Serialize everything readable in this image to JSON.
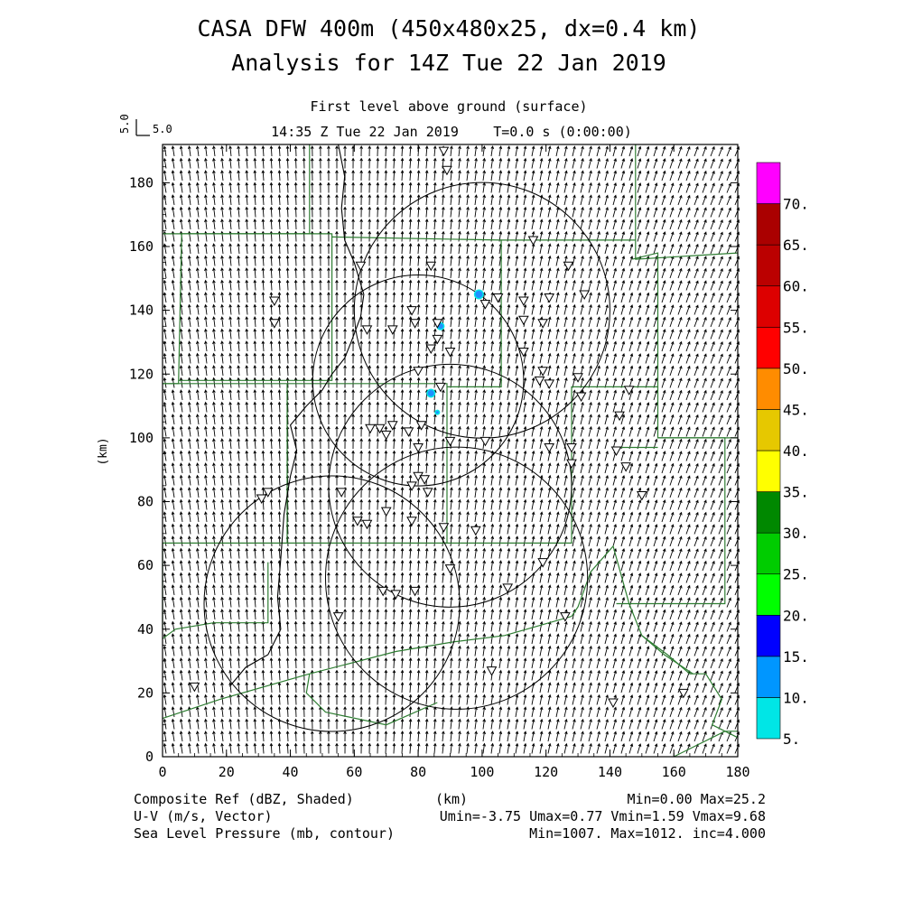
{
  "header": {
    "title_line1": "CASA DFW 400m (450x480x25, dx=0.4 km)",
    "title_line2": "Analysis for 14Z Tue 22 Jan 2019"
  },
  "plot": {
    "subtitle": "First level above ground (surface)",
    "timestamp": "14:35 Z Tue 22 Jan 2019",
    "time_info": "T=0.0 s (0:00:00)",
    "vector_scale_vertical": "5.0",
    "vector_scale_horizontal": "5.0",
    "x_axis_label": "(km)",
    "y_axis_label": "(km)",
    "x_range_km": [
      0,
      180
    ],
    "y_range_km": [
      0,
      192
    ],
    "x_ticks": [
      "0",
      "20",
      "40",
      "60",
      "80",
      "100",
      "120",
      "140",
      "160",
      "180"
    ],
    "y_ticks": [
      "0",
      "20",
      "40",
      "60",
      "80",
      "100",
      "120",
      "140",
      "160",
      "180"
    ]
  },
  "colorbar": {
    "labels": [
      "5.",
      "10.",
      "15.",
      "20.",
      "25.",
      "30.",
      "35.",
      "40.",
      "45.",
      "50.",
      "55.",
      "60.",
      "65.",
      "70."
    ],
    "colors": [
      "#00e6e6",
      "#0096ff",
      "#0000ff",
      "#00ff00",
      "#00cc00",
      "#008800",
      "#ffff00",
      "#e6c800",
      "#ff8c00",
      "#ff0000",
      "#dd0000",
      "#bb0000",
      "#aa0000",
      "#ff00ff"
    ]
  },
  "footer": {
    "field1_name": "Composite Ref (dBZ, Shaded)",
    "field1_stats": "Min=0.00 Max=25.2",
    "field2_name": "U-V (m/s, Vector)",
    "field2_stats": "Umin=-3.75 Umax=0.77 Vmin=1.59 Vmax=9.68",
    "field3_name": "Sea Level Pressure (mb, contour)",
    "field3_stats": "Min=1007. Max=1012. inc=4.000",
    "x_unit": "(km)"
  },
  "colors": {
    "county_lines": "#2e7d32",
    "reflectivity_echo": "#1e90ff",
    "reflectivity_light": "#00e6e6"
  },
  "icons": {
    "station": "inverted-triangle",
    "echo": "filled-dot"
  },
  "radar_rings": [
    {
      "cx_km": 100,
      "cy_km": 140,
      "r_km": 40
    },
    {
      "cx_km": 80,
      "cy_km": 118,
      "r_km": 33
    },
    {
      "cx_km": 90,
      "cy_km": 85,
      "r_km": 38
    },
    {
      "cx_km": 53,
      "cy_km": 48,
      "r_km": 40
    },
    {
      "cx_km": 92,
      "cy_km": 56,
      "r_km": 41
    }
  ],
  "stations_km": [
    [
      88,
      190
    ],
    [
      89,
      184
    ],
    [
      62,
      154
    ],
    [
      84,
      154
    ],
    [
      116,
      162
    ],
    [
      127,
      154
    ],
    [
      132,
      145
    ],
    [
      121,
      144
    ],
    [
      113,
      143
    ],
    [
      105,
      144
    ],
    [
      101,
      142
    ],
    [
      35,
      143
    ],
    [
      35,
      136
    ],
    [
      64,
      134
    ],
    [
      72,
      134
    ],
    [
      78,
      140
    ],
    [
      79,
      136
    ],
    [
      86,
      136
    ],
    [
      86,
      131
    ],
    [
      84,
      128
    ],
    [
      80,
      121
    ],
    [
      90,
      127
    ],
    [
      87,
      116
    ],
    [
      113,
      137
    ],
    [
      119,
      136
    ],
    [
      113,
      127
    ],
    [
      119,
      121
    ],
    [
      118,
      118
    ],
    [
      121,
      117
    ],
    [
      130,
      119
    ],
    [
      131,
      113
    ],
    [
      146,
      115
    ],
    [
      143,
      107
    ],
    [
      65,
      103
    ],
    [
      68,
      103
    ],
    [
      70,
      101
    ],
    [
      72,
      104
    ],
    [
      77,
      102
    ],
    [
      81,
      104
    ],
    [
      80,
      97
    ],
    [
      90,
      99
    ],
    [
      101,
      99
    ],
    [
      121,
      97
    ],
    [
      128,
      97
    ],
    [
      142,
      96
    ],
    [
      145,
      91
    ],
    [
      150,
      82
    ],
    [
      128,
      92
    ],
    [
      33,
      83
    ],
    [
      31,
      81
    ],
    [
      56,
      83
    ],
    [
      78,
      85
    ],
    [
      80,
      88
    ],
    [
      82,
      87
    ],
    [
      83,
      83
    ],
    [
      70,
      77
    ],
    [
      78,
      74
    ],
    [
      88,
      72
    ],
    [
      61,
      74
    ],
    [
      64,
      73
    ],
    [
      98,
      71
    ],
    [
      90,
      59
    ],
    [
      119,
      61
    ],
    [
      108,
      53
    ],
    [
      69,
      52
    ],
    [
      73,
      51
    ],
    [
      79,
      52
    ],
    [
      55,
      44
    ],
    [
      126,
      44
    ],
    [
      103,
      27
    ],
    [
      141,
      17
    ],
    [
      163,
      20
    ],
    [
      10,
      22
    ]
  ],
  "echoes_km": [
    {
      "x": 99,
      "y": 145,
      "r": 4
    },
    {
      "x": 87,
      "y": 135,
      "r": 3
    },
    {
      "x": 84,
      "y": 114,
      "r": 3.5
    },
    {
      "x": 86,
      "y": 108,
      "r": 1.5
    }
  ],
  "county_boundaries_km": [
    [
      [
        0,
        164
      ],
      [
        46,
        164
      ],
      [
        46,
        192
      ]
    ],
    [
      [
        6,
        164
      ],
      [
        5,
        117
      ],
      [
        0,
        117
      ]
    ],
    [
      [
        6,
        164
      ],
      [
        53,
        164
      ],
      [
        53,
        118
      ],
      [
        5,
        118
      ]
    ],
    [
      [
        53,
        163
      ],
      [
        106,
        162
      ],
      [
        106,
        116
      ],
      [
        89,
        116
      ]
    ],
    [
      [
        106,
        162
      ],
      [
        148,
        162
      ],
      [
        148,
        156
      ],
      [
        180,
        158
      ]
    ],
    [
      [
        148,
        192
      ],
      [
        148,
        162
      ]
    ],
    [
      [
        147,
        156
      ],
      [
        155,
        158
      ],
      [
        155,
        116
      ],
      [
        128,
        116
      ],
      [
        128,
        67
      ],
      [
        88,
        67
      ]
    ],
    [
      [
        155,
        116
      ],
      [
        155,
        100
      ],
      [
        180,
        100
      ]
    ],
    [
      [
        142,
        97
      ],
      [
        155,
        97
      ]
    ],
    [
      [
        155,
        100
      ],
      [
        176,
        100
      ],
      [
        176,
        48
      ],
      [
        142,
        48
      ]
    ],
    [
      [
        0,
        117
      ],
      [
        89,
        117
      ],
      [
        89,
        67
      ]
    ],
    [
      [
        39,
        117
      ],
      [
        39,
        67
      ],
      [
        0,
        67
      ]
    ],
    [
      [
        39,
        67
      ],
      [
        89,
        67
      ]
    ],
    [
      [
        0,
        67
      ],
      [
        0,
        40
      ]
    ],
    [
      [
        16,
        42
      ],
      [
        33,
        42
      ],
      [
        33,
        61
      ]
    ],
    [
      [
        16,
        42
      ],
      [
        4,
        40
      ],
      [
        0,
        37
      ]
    ],
    [
      [
        0,
        12
      ],
      [
        18,
        18
      ],
      [
        46,
        26
      ],
      [
        73,
        33
      ],
      [
        91,
        36
      ],
      [
        107,
        38
      ],
      [
        128,
        44
      ]
    ],
    [
      [
        46,
        26
      ],
      [
        45,
        20
      ],
      [
        51,
        14
      ],
      [
        70,
        10
      ],
      [
        86,
        17
      ]
    ],
    [
      [
        128,
        44
      ],
      [
        130,
        47
      ],
      [
        134,
        58
      ],
      [
        141,
        66
      ],
      [
        146,
        48
      ],
      [
        150,
        38
      ],
      [
        158,
        32
      ],
      [
        165,
        26
      ],
      [
        170,
        26
      ],
      [
        175,
        18
      ],
      [
        172,
        10
      ],
      [
        180,
        6
      ]
    ],
    [
      [
        150,
        38
      ],
      [
        157,
        32
      ],
      [
        166,
        26
      ]
    ],
    [
      [
        0,
        192
      ],
      [
        0,
        192
      ]
    ],
    [
      [
        160,
        0
      ],
      [
        172,
        6
      ],
      [
        176,
        8
      ],
      [
        180,
        8
      ]
    ]
  ],
  "pressure_contour_km": [
    [
      [
        55,
        192
      ],
      [
        57,
        182
      ],
      [
        56,
        172
      ],
      [
        57,
        162
      ],
      [
        60,
        155
      ],
      [
        63,
        145
      ],
      [
        62,
        138
      ],
      [
        59,
        130
      ],
      [
        57,
        125
      ],
      [
        53,
        120
      ],
      [
        50,
        115
      ],
      [
        45,
        110
      ],
      [
        40,
        104
      ],
      [
        42,
        96
      ],
      [
        40,
        88
      ],
      [
        38,
        76
      ],
      [
        37,
        62
      ],
      [
        36,
        50
      ],
      [
        37,
        40
      ],
      [
        33,
        32
      ],
      [
        26,
        28
      ],
      [
        21,
        22
      ]
    ]
  ]
}
